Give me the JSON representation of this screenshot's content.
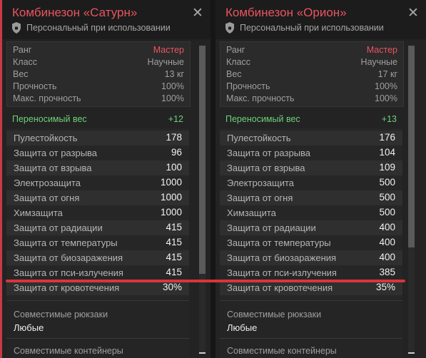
{
  "left": {
    "title": "Комбинезон «Сатурн»",
    "subtitle": "Персональный при использовании",
    "stats": [
      {
        "label": "Ранг",
        "value": "Мастер"
      },
      {
        "label": "Класс",
        "value": "Научные"
      },
      {
        "label": "Вес",
        "value": "13 кг"
      },
      {
        "label": "Прочность",
        "value": "100%"
      },
      {
        "label": "Макс. прочность",
        "value": "100%"
      }
    ],
    "carry": {
      "label": "Переносимый вес",
      "value": "+12"
    },
    "protections": [
      {
        "label": "Пулестойкость",
        "value": "178"
      },
      {
        "label": "Защита от разрыва",
        "value": "96"
      },
      {
        "label": "Защита от взрыва",
        "value": "100"
      },
      {
        "label": "Электрозащита",
        "value": "1000"
      },
      {
        "label": "Защита от огня",
        "value": "1000"
      },
      {
        "label": "Химзащита",
        "value": "1000"
      },
      {
        "label": "Защита от радиации",
        "value": "415"
      },
      {
        "label": "Защита от температуры",
        "value": "415"
      },
      {
        "label": "Защита от биозаражения",
        "value": "415"
      },
      {
        "label": "Защита от пси-излучения",
        "value": "415"
      },
      {
        "label": "Защита от кровотечения",
        "value": "30%"
      }
    ],
    "compat_backpacks_label": "Совместимые рюкзаки",
    "compat_backpacks_value": "Любые",
    "compat_containers_label": "Совместимые контейнеры"
  },
  "right": {
    "title": "Комбинезон «Орион»",
    "subtitle": "Персональный при использовании",
    "stats": [
      {
        "label": "Ранг",
        "value": "Мастер"
      },
      {
        "label": "Класс",
        "value": "Научные"
      },
      {
        "label": "Вес",
        "value": "17 кг"
      },
      {
        "label": "Прочность",
        "value": "100%"
      },
      {
        "label": "Макс. прочность",
        "value": "100%"
      }
    ],
    "carry": {
      "label": "Переносимый вес",
      "value": "+13"
    },
    "protections": [
      {
        "label": "Пулестойкость",
        "value": "176"
      },
      {
        "label": "Защита от разрыва",
        "value": "104"
      },
      {
        "label": "Защита от взрыва",
        "value": "109"
      },
      {
        "label": "Электрозащита",
        "value": "500"
      },
      {
        "label": "Защита от огня",
        "value": "500"
      },
      {
        "label": "Химзащита",
        "value": "500"
      },
      {
        "label": "Защита от радиации",
        "value": "400"
      },
      {
        "label": "Защита от температуры",
        "value": "400"
      },
      {
        "label": "Защита от биозаражения",
        "value": "400"
      },
      {
        "label": "Защита от пси-излучения",
        "value": "385"
      },
      {
        "label": "Защита от кровотечения",
        "value": "35%"
      }
    ],
    "compat_backpacks_label": "Совместимые рюкзаки",
    "compat_backpacks_value": "Любые",
    "compat_containers_label": "Совместимые контейнеры"
  },
  "close_glyph": "✕",
  "colors": {
    "accent": "#e85560",
    "carry_green": "#6fd07a",
    "highlight_line": "#d9353a",
    "panel_bg": "#232323"
  },
  "icons": {
    "shield": "shield-icon",
    "close": "close-icon"
  }
}
